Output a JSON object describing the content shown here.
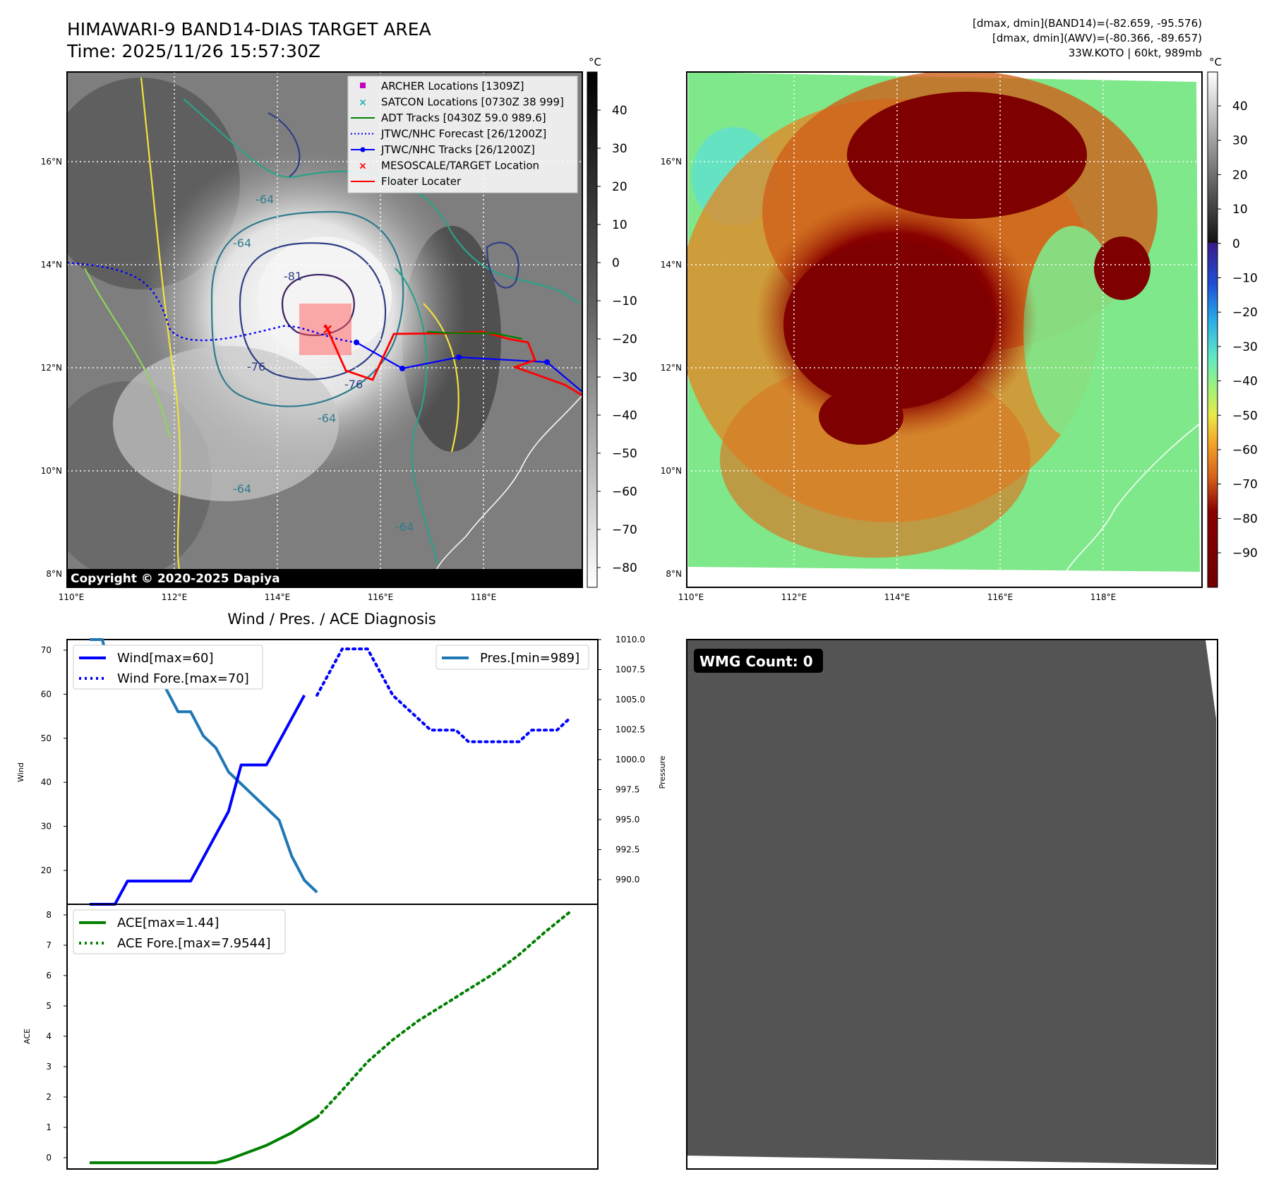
{
  "header": {
    "title": "HIMAWARI-9 BAND14-DIAS TARGET AREA",
    "time": "Time: 2025/11/26 15:57:30Z",
    "info_line1": "[dmax, dmin](BAND14)=(-82.659, -95.576)",
    "info_line2": "[dmax, dmin](AWV)=(-80.366, -89.657)",
    "info_line3": "33W.KOTO | 60kt, 989mb"
  },
  "map": {
    "lon_ticks": [
      "110°E",
      "112°E",
      "114°E",
      "116°E",
      "118°E"
    ],
    "lat_ticks": [
      "16°N",
      "14°N",
      "12°N",
      "10°N",
      "8°N"
    ],
    "copyright": "Copyright © 2020-2025 Dapiya",
    "colorbar_unit": "°C",
    "gray_colorbar_ticks": [
      "40",
      "30",
      "20",
      "10",
      "0",
      "−10",
      "−20",
      "−30",
      "−40",
      "−50",
      "−60",
      "−70",
      "−80"
    ],
    "color_colorbar_ticks": [
      "40",
      "30",
      "20",
      "10",
      "0",
      "−10",
      "−20",
      "−30",
      "−40",
      "−50",
      "−60",
      "−70",
      "−80",
      "−90"
    ],
    "contour_labels": [
      "-81",
      "-76",
      "-76",
      "-64",
      "-64",
      "-64",
      "-64",
      "-64"
    ],
    "legend": [
      {
        "label": "ARCHER Locations [1309Z]",
        "color": "#c000c0",
        "marker": "square"
      },
      {
        "label": "SATCON Locations [0730Z 38 999]",
        "color": "#20b0b0",
        "marker": "x"
      },
      {
        "label": "ADT Tracks [0430Z 59.0 989.6]",
        "color": "#008000",
        "marker": "line"
      },
      {
        "label": "JTWC/NHC Forecast [26/1200Z]",
        "color": "#0000ff",
        "marker": "dotted"
      },
      {
        "label": "JTWC/NHC Tracks [26/1200Z]",
        "color": "#0000ff",
        "marker": "line-dot"
      },
      {
        "label": "MESOSCALE/TARGET Location",
        "color": "#ff0000",
        "marker": "x"
      },
      {
        "label": "Floater Locater",
        "color": "#ff0000",
        "marker": "line"
      }
    ]
  },
  "diagnosis": {
    "title": "Wind / Pres. / ACE Diagnosis",
    "wind_ylabel": "Wind",
    "pres_ylabel": "Pressure",
    "ace_ylabel": "ACE",
    "wind_ticks": [
      "70",
      "60",
      "50",
      "40",
      "30",
      "20"
    ],
    "pres_ticks": [
      "1010.0",
      "1007.5",
      "1005.0",
      "1002.5",
      "1000.0",
      "997.5",
      "995.0",
      "992.5",
      "990.0"
    ],
    "ace_ticks": [
      "8",
      "7",
      "6",
      "5",
      "4",
      "3",
      "2",
      "1",
      "0"
    ],
    "legend_wind": "Wind[max=60]",
    "legend_wind_fore": "Wind Fore.[max=70]",
    "legend_pres": "Pres.[min=989]",
    "legend_ace": "ACE[max=1.44]",
    "legend_ace_fore": "ACE Fore.[max=7.9544]"
  },
  "wmg": {
    "badge": "WMG Count: 0"
  },
  "chart_data": [
    {
      "type": "line",
      "title": "Wind / Pres. / ACE Diagnosis",
      "ylabel": "Wind",
      "ylim": [
        15,
        72
      ],
      "series": [
        {
          "name": "Wind[max=60]",
          "style": "solid",
          "color": "#0000ff",
          "x": [
            0,
            2,
            4,
            6,
            8,
            10,
            12,
            14,
            16,
            18,
            20,
            22,
            24,
            26,
            28,
            30,
            32,
            34,
            36,
            38,
            40,
            42,
            44
          ],
          "y": [
            15,
            15,
            15,
            20,
            20,
            20,
            20,
            20,
            20,
            25,
            30,
            35,
            45,
            45,
            45,
            50,
            55,
            60,
            null,
            null,
            null,
            null,
            null
          ]
        },
        {
          "name": "Wind Fore.[max=70]",
          "style": "dotted",
          "color": "#0000ff",
          "x": [
            36,
            38,
            40,
            42,
            44,
            46,
            48,
            50,
            52,
            54,
            56,
            58,
            60,
            62,
            64,
            66,
            68,
            70,
            72,
            74,
            76
          ],
          "y": [
            60,
            65,
            70,
            70,
            70,
            65,
            60,
            57.5,
            55,
            52.5,
            52.5,
            52.5,
            50,
            50,
            50,
            50,
            50,
            52.5,
            52.5,
            52.5,
            55
          ]
        }
      ]
    },
    {
      "type": "line",
      "ylabel": "Pressure",
      "ylim": [
        988,
        1010
      ],
      "series": [
        {
          "name": "Pres.[min=989]",
          "color": "#1f77b4",
          "x": [
            0,
            2,
            4,
            6,
            8,
            10,
            12,
            14,
            16,
            18,
            20,
            22,
            24,
            26,
            28,
            30,
            32,
            34,
            36,
            38
          ],
          "y": [
            1010,
            1010,
            1006,
            1006,
            1006,
            1006,
            1006,
            1004,
            1004,
            1002,
            1001,
            999,
            998,
            997,
            996,
            995,
            992,
            990,
            989,
            null
          ]
        }
      ]
    },
    {
      "type": "line",
      "ylabel": "ACE",
      "ylim": [
        -0.2,
        8.2
      ],
      "series": [
        {
          "name": "ACE[max=1.44]",
          "style": "solid",
          "color": "#008000",
          "x": [
            0,
            4,
            8,
            12,
            16,
            18,
            20,
            22,
            24,
            26,
            28,
            30,
            32,
            34,
            36
          ],
          "y": [
            0,
            0,
            0,
            0,
            0,
            0,
            0,
            0.1,
            0.25,
            0.4,
            0.55,
            0.75,
            0.95,
            1.2,
            1.44
          ]
        },
        {
          "name": "ACE Fore.[max=7.9544]",
          "style": "dotted",
          "color": "#008000",
          "x": [
            36,
            40,
            44,
            48,
            52,
            56,
            60,
            64,
            68,
            72,
            76
          ],
          "y": [
            1.44,
            2.3,
            3.2,
            3.9,
            4.5,
            5.0,
            5.5,
            6.0,
            6.6,
            7.3,
            7.95
          ]
        }
      ]
    }
  ]
}
